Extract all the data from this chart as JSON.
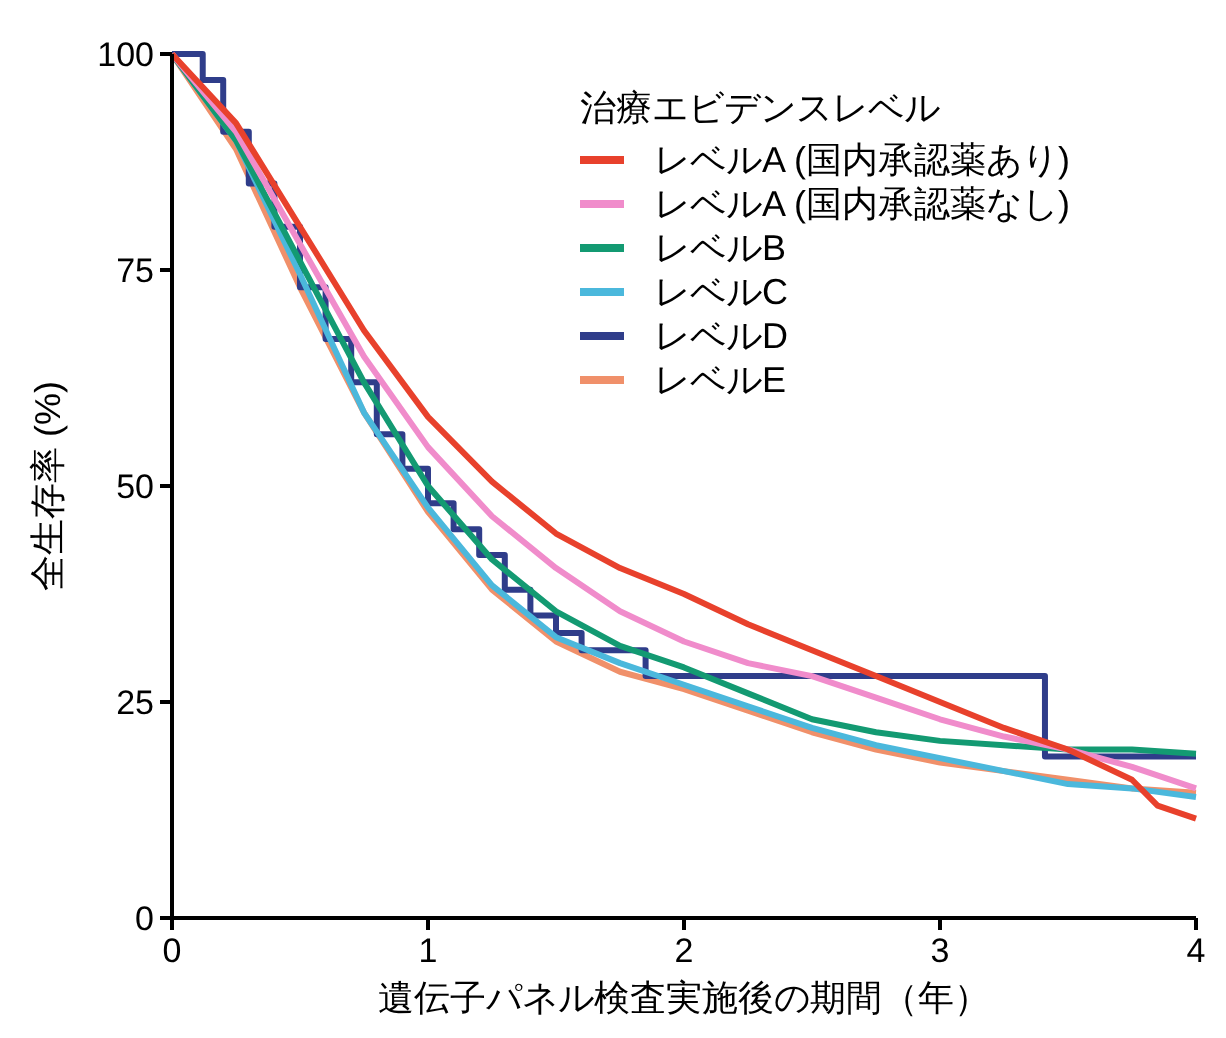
{
  "chart_data": {
    "type": "line",
    "xlabel": "遺伝子パネル検査実施後の期間（年）",
    "ylabel": "全生存率 (%)",
    "legend_title": "治療エビデンスレベル",
    "legend": "top right",
    "xlim": [
      0,
      4
    ],
    "xticks": [
      0,
      1,
      2,
      3,
      4
    ],
    "ylim": [
      0,
      100
    ],
    "yticks": [
      0,
      25,
      50,
      75,
      100
    ],
    "grid": false,
    "line_style": "solid",
    "marker": "none",
    "series": [
      {
        "name": "レベルA (国内承認薬あり)",
        "color": "#e8412c",
        "x": [
          0,
          0.25,
          0.5,
          0.75,
          1,
          1.25,
          1.5,
          1.75,
          2,
          2.25,
          2.5,
          2.75,
          3,
          3.25,
          3.5,
          3.75,
          3.85,
          4
        ],
        "values": [
          100,
          92,
          80,
          68,
          58,
          50.5,
          44.5,
          40.5,
          37.5,
          34,
          31,
          28,
          25,
          22,
          19.5,
          16,
          13,
          11.5
        ]
      },
      {
        "name": "レベルA (国内承認薬なし)",
        "color": "#f08ccb",
        "x": [
          0,
          0.25,
          0.5,
          0.75,
          1,
          1.25,
          1.5,
          1.75,
          2,
          2.25,
          2.5,
          2.75,
          3,
          3.25,
          3.5,
          3.75,
          4
        ],
        "values": [
          100,
          91,
          78,
          65,
          54.5,
          46.5,
          40.5,
          35.5,
          32,
          29.5,
          28,
          25.5,
          23,
          21,
          19.5,
          17.5,
          15
        ]
      },
      {
        "name": "レベルB",
        "color": "#139a72",
        "x": [
          0,
          0.25,
          0.5,
          0.75,
          1,
          1.25,
          1.5,
          1.75,
          2,
          2.25,
          2.5,
          2.75,
          3,
          3.25,
          3.5,
          3.75,
          4
        ],
        "values": [
          100,
          90,
          76,
          62,
          50,
          41.5,
          35.5,
          31.5,
          29,
          26,
          23,
          21.5,
          20.5,
          20,
          19.5,
          19.5,
          19
        ]
      },
      {
        "name": "レベルC",
        "color": "#4bb8dc",
        "x": [
          0,
          0.25,
          0.5,
          0.75,
          1,
          1.25,
          1.5,
          1.75,
          2,
          2.25,
          2.5,
          2.75,
          3,
          3.25,
          3.5,
          3.75,
          4
        ],
        "values": [
          100,
          90,
          74.5,
          58.5,
          47.5,
          38.5,
          32.5,
          29.5,
          27,
          24.5,
          22,
          20,
          18.5,
          17,
          15.5,
          15,
          14
        ]
      },
      {
        "name": "レベルD",
        "type": "step",
        "color": "#2f3d8a",
        "x": [
          0,
          0.12,
          0.2,
          0.3,
          0.4,
          0.5,
          0.6,
          0.7,
          0.8,
          0.9,
          1.0,
          1.1,
          1.2,
          1.3,
          1.4,
          1.5,
          1.6,
          1.85,
          3.41,
          4
        ],
        "values": [
          100,
          97,
          91,
          85,
          80,
          73,
          67,
          62,
          56,
          52,
          48,
          45,
          42,
          38,
          35,
          33,
          31,
          28,
          18.7,
          18.7
        ]
      },
      {
        "name": "レベルE",
        "color": "#f0906a",
        "x": [
          0,
          0.25,
          0.5,
          0.75,
          1,
          1.25,
          1.5,
          1.75,
          2,
          2.25,
          2.5,
          2.75,
          3,
          3.25,
          3.5,
          3.75,
          4
        ],
        "values": [
          100,
          89,
          73,
          58.5,
          47,
          38,
          32,
          28.5,
          26.5,
          24,
          21.5,
          19.5,
          18,
          17,
          16,
          15,
          14.5
        ]
      }
    ]
  }
}
